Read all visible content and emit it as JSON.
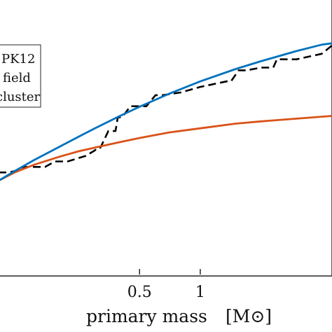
{
  "chart_data": {
    "type": "line",
    "xscale": "log",
    "xlabel_text": "primary mass",
    "xlabel_unit": "[M⊙]",
    "xlim": [
      0.1,
      4.5
    ],
    "ylim": [
      0,
      1
    ],
    "xticks": [
      {
        "value": 0.5,
        "label": "0.5"
      },
      {
        "value": 1,
        "label": "1"
      }
    ],
    "legend": {
      "placement": "top-left",
      "entries": [
        "PK12",
        "field",
        "cluster"
      ]
    },
    "series": [
      {
        "name": "PK12",
        "color": "#000000",
        "style": "dashed",
        "x": [
          0.1,
          0.113,
          0.127,
          0.13,
          0.135,
          0.16,
          0.17,
          0.19,
          0.22,
          0.27,
          0.3,
          0.31,
          0.32,
          0.35,
          0.38,
          0.39,
          0.41,
          0.45,
          0.54,
          0.6,
          0.65,
          0.8,
          1.0,
          1.35,
          1.42,
          1.55,
          1.7,
          2.0,
          2.3,
          2.4,
          3.0,
          4.0,
          4.5
        ],
        "y": [
          0.37,
          0.37,
          0.38,
          0.38,
          0.39,
          0.39,
          0.39,
          0.41,
          0.41,
          0.43,
          0.45,
          0.46,
          0.46,
          0.52,
          0.52,
          0.57,
          0.57,
          0.61,
          0.61,
          0.65,
          0.65,
          0.66,
          0.68,
          0.7,
          0.7,
          0.74,
          0.74,
          0.75,
          0.75,
          0.78,
          0.78,
          0.8,
          0.83
        ]
      },
      {
        "name": "field",
        "color": "#0072BD",
        "style": "solid",
        "x": [
          0.1,
          0.12,
          0.15,
          0.2,
          0.25,
          0.3,
          0.4,
          0.5,
          0.7,
          1.0,
          1.5,
          2.0,
          3.0,
          4.0,
          4.5
        ],
        "y": [
          0.34,
          0.375,
          0.415,
          0.463,
          0.5,
          0.53,
          0.575,
          0.608,
          0.655,
          0.7,
          0.745,
          0.773,
          0.81,
          0.833,
          0.838
        ]
      },
      {
        "name": "cluster",
        "color": "#D95319",
        "style": "solid",
        "x": [
          0.1,
          0.12,
          0.15,
          0.2,
          0.25,
          0.3,
          0.4,
          0.5,
          0.7,
          1.0,
          1.5,
          2.0,
          3.0,
          4.0,
          4.5
        ],
        "y": [
          0.34,
          0.37,
          0.398,
          0.427,
          0.447,
          0.46,
          0.48,
          0.495,
          0.515,
          0.53,
          0.547,
          0.555,
          0.565,
          0.572,
          0.575
        ]
      }
    ]
  }
}
